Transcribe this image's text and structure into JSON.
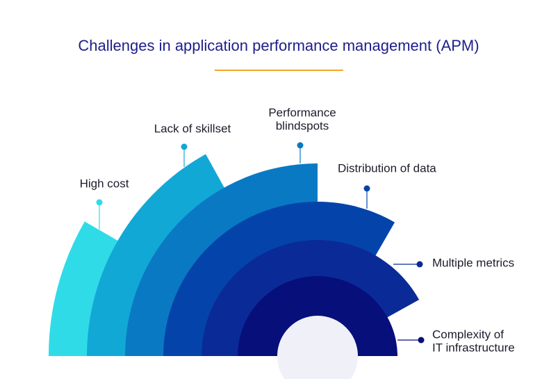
{
  "title": "Challenges in application performance management (APM)",
  "items": [
    {
      "label_lines": [
        "High cost"
      ]
    },
    {
      "label_lines": [
        "Lack of skillset"
      ]
    },
    {
      "label_lines": [
        "Performance",
        "blindspots"
      ]
    },
    {
      "label_lines": [
        "Distribution of data"
      ]
    },
    {
      "label_lines": [
        "Multiple metrics"
      ]
    },
    {
      "label_lines": [
        "Complexity of",
        "IT infrastructure"
      ]
    }
  ]
}
